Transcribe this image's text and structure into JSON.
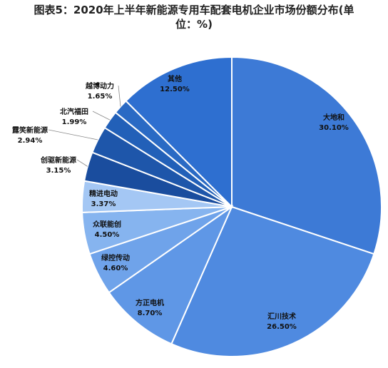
{
  "chart_data": {
    "type": "pie",
    "title_line1": "图表5：2020年上半年新能源专用车配套电机企业市场份额分布(单",
    "title_line2": "位：%)",
    "slices": [
      {
        "name": "大地和",
        "label": "30.10%",
        "value": 30.1,
        "color": "#3d7ad6"
      },
      {
        "name": "汇川技术",
        "label": "26.50%",
        "value": 26.5,
        "color": "#4f8ae0"
      },
      {
        "name": "方正电机",
        "label": "8.70%",
        "value": 8.7,
        "color": "#5f97e6"
      },
      {
        "name": "绿控传动",
        "label": "4.60%",
        "value": 4.6,
        "color": "#6fa3ea"
      },
      {
        "name": "众联能创",
        "label": "4.50%",
        "value": 4.5,
        "color": "#86b4ef"
      },
      {
        "name": "精进电动",
        "label": "3.37%",
        "value": 3.37,
        "color": "#a4c7f4"
      },
      {
        "name": "创驱新能源",
        "label": "3.15%",
        "value": 3.15,
        "color": "#1a4d9e"
      },
      {
        "name": "露笑新能源",
        "label": "2.94%",
        "value": 2.94,
        "color": "#1e56aa"
      },
      {
        "name": "北汽福田",
        "label": "1.99%",
        "value": 1.99,
        "color": "#2260b8"
      },
      {
        "name": "越博动力",
        "label": "1.65%",
        "value": 1.65,
        "color": "#2a6ac4"
      },
      {
        "name": "其他",
        "label": "12.50%",
        "value": 12.5,
        "color": "#2e6fd0"
      }
    ]
  }
}
